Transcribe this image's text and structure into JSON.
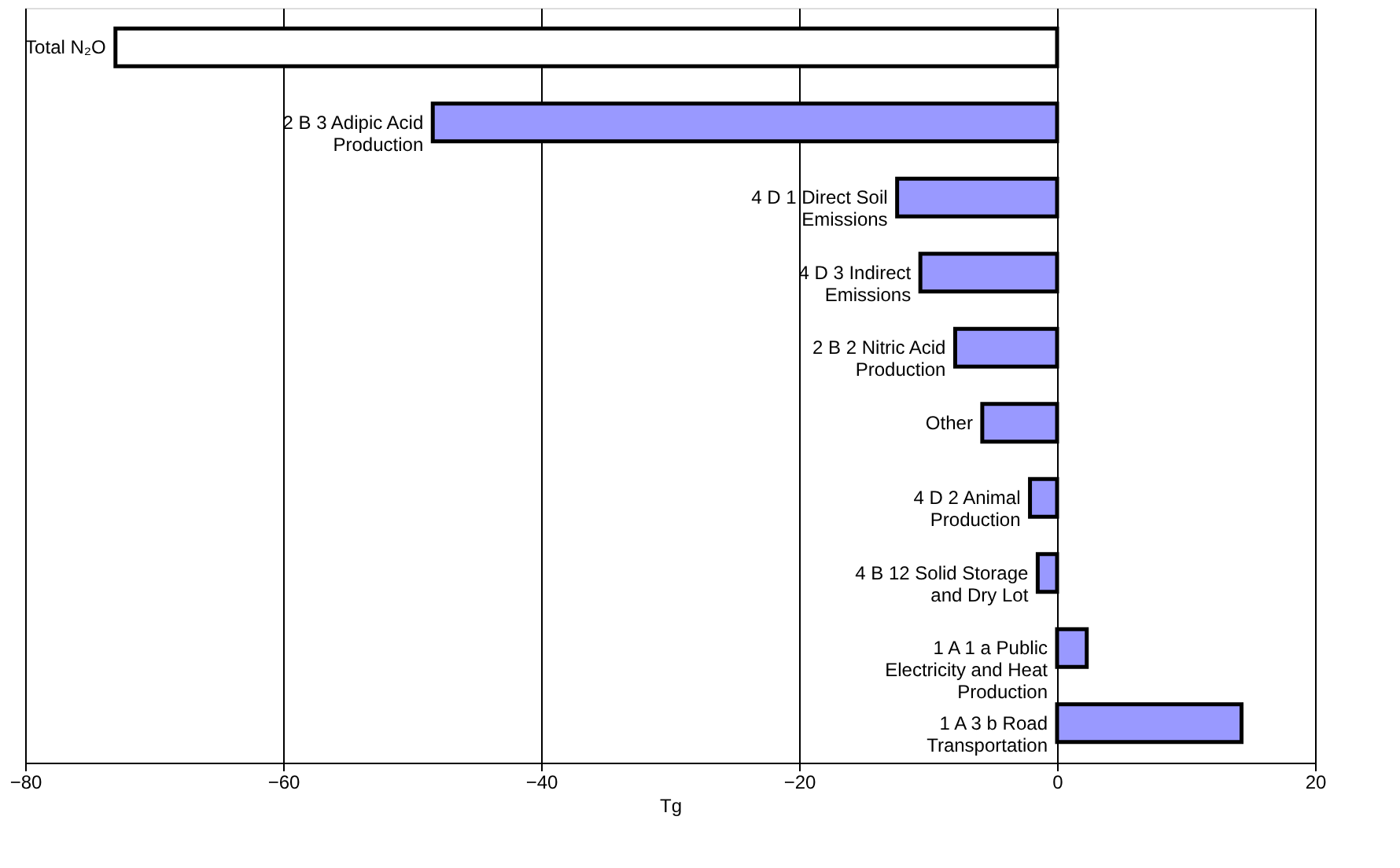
{
  "chart_data": {
    "type": "bar",
    "orientation": "horizontal",
    "xlabel": "Tg",
    "categories": [
      "Total N₂O",
      "2 B 3 Adipic Acid Production",
      "4 D 1 Direct Soil Emissions",
      "4 D 3 Indirect Emissions",
      "2 B 2 Nitric Acid Production",
      "Other",
      "4 D 2 Animal Production",
      "4 B 12 Solid Storage and Dry Lot",
      "1 A 1 a Public Electricity and Heat Production",
      "1 A 3 b Road Transportation"
    ],
    "values": [
      -73.0,
      -48.4,
      -12.4,
      -10.6,
      -7.9,
      -5.8,
      -2.1,
      -1.5,
      2.3,
      14.3
    ],
    "colors": [
      "#ffffff",
      "#9999ff",
      "#9999ff",
      "#9999ff",
      "#9999ff",
      "#9999ff",
      "#9999ff",
      "#9999ff",
      "#9999ff",
      "#9999ff"
    ],
    "xlim": [
      -80,
      20
    ],
    "xticks": [
      -80,
      -60,
      -40,
      -20,
      0,
      20
    ],
    "grid": "x",
    "tick_labels": "x"
  }
}
